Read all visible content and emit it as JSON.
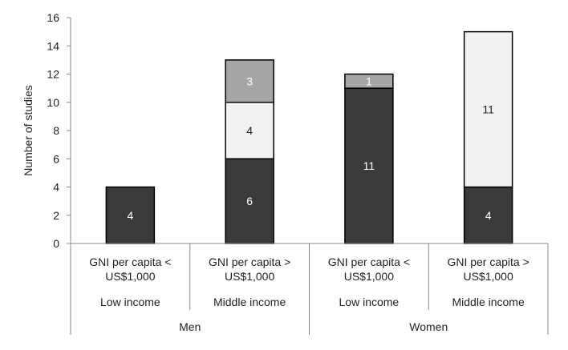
{
  "chart_data": {
    "type": "bar",
    "stacked": true,
    "ylabel": "Number of studies",
    "ylim": [
      0,
      16
    ],
    "yticks": [
      0,
      2,
      4,
      6,
      8,
      10,
      12,
      14,
      16
    ],
    "grid": false,
    "categories": [
      "GNI per capita < US$1,000",
      "GNI per capita > US$1,000",
      "GNI per capita < US$1,000",
      "GNI per capita > US$1,000"
    ],
    "category_lines": [
      [
        "GNI per capita <",
        "US$1,000"
      ],
      [
        "GNI per capita >",
        "US$1,000"
      ],
      [
        "GNI per capita <",
        "US$1,000"
      ],
      [
        "GNI per capita >",
        "US$1,000"
      ]
    ],
    "income_labels": [
      "Low income",
      "Middle income",
      "Low income",
      "Middle income"
    ],
    "groups": [
      {
        "label": "Men",
        "categories": [
          0,
          1
        ]
      },
      {
        "label": "Women",
        "categories": [
          2,
          3
        ]
      }
    ],
    "series": [
      {
        "color": "#3a3a3a",
        "text_color": "#ffffff",
        "values": [
          4,
          6,
          11,
          4
        ],
        "labels": [
          "4",
          "6",
          "11",
          "4"
        ]
      },
      {
        "color": "#f2f2f2",
        "text_color": "#222222",
        "values": [
          0,
          4,
          0,
          11
        ],
        "labels": [
          "",
          "4",
          "",
          "11"
        ]
      },
      {
        "color": "#a6a6a6",
        "text_color": "#ffffff",
        "values": [
          0,
          3,
          1,
          0
        ],
        "labels": [
          "",
          "3",
          "1",
          ""
        ]
      }
    ]
  }
}
